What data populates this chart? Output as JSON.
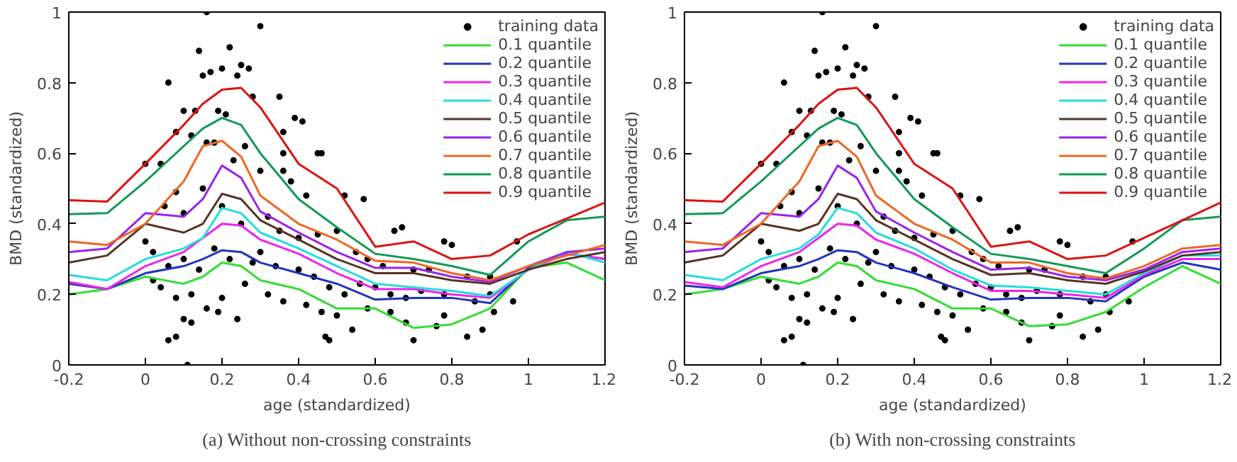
{
  "chart_data": [
    {
      "type": "line",
      "xlabel": "age (standardized)",
      "ylabel": "BMD (standardized)",
      "annotations": [
        "(a) Without non-crossing constraints"
      ],
      "xlim": [
        -0.2,
        1.2
      ],
      "ylim": [
        0,
        1
      ],
      "xticks": [
        -0.2,
        0,
        0.2,
        0.4,
        0.6,
        0.8,
        1,
        1.2
      ],
      "yticks": [
        0,
        0.2,
        0.4,
        0.6,
        0.8,
        1
      ],
      "grid": false,
      "legend": "top right",
      "line_style": "solid",
      "x": [
        -0.2,
        -0.1,
        0,
        0.1,
        0.15,
        0.2,
        0.25,
        0.3,
        0.4,
        0.5,
        0.6,
        0.7,
        0.8,
        0.9,
        1.0,
        1.1,
        1.2
      ],
      "series": [
        {
          "name": "training data",
          "type": "scatter",
          "marker": "circle",
          "color": "#000000",
          "x": [
            0.16,
            0.3,
            0.14,
            0.22,
            0.2,
            0.15,
            0.17,
            0.25,
            0.27,
            0.06,
            0.24,
            0.1,
            0.08,
            0.13,
            0.19,
            0.21,
            0.28,
            0.35,
            0.41,
            0.39,
            0.45,
            0.46,
            0.36,
            0.36,
            0.04,
            0.0,
            0.12,
            0.16,
            0.18,
            0.23,
            0.26,
            0.3,
            0.36,
            0.38,
            0.42,
            0.52,
            0.57,
            0.65,
            0.67,
            0.78,
            0.8,
            0.97,
            0.05,
            0.08,
            0.1,
            0.15,
            0.2,
            0.25,
            0.32,
            0.35,
            0.4,
            0.45,
            0.5,
            0.55,
            0.58,
            0.62,
            0.7,
            0.74,
            0.84,
            0.9,
            0.0,
            0.02,
            0.06,
            0.1,
            0.14,
            0.18,
            0.22,
            0.28,
            0.3,
            0.34,
            0.4,
            0.44,
            0.48,
            0.52,
            0.56,
            0.6,
            0.64,
            0.68,
            0.72,
            0.78,
            0.86,
            0.9,
            0.02,
            0.04,
            0.08,
            0.12,
            0.16,
            0.2,
            0.24,
            0.26,
            0.32,
            0.36,
            0.42,
            0.46,
            0.5,
            0.54,
            0.48,
            0.47,
            0.64,
            0.68,
            0.7,
            0.76,
            0.78,
            0.84,
            0.88,
            0.91,
            0.06,
            0.08,
            0.1,
            0.12,
            0.11,
            0.19,
            0.96,
            0.58
          ],
          "values": [
            1.0,
            0.96,
            0.89,
            0.9,
            0.84,
            0.82,
            0.83,
            0.85,
            0.84,
            0.8,
            0.82,
            0.72,
            0.66,
            0.72,
            0.72,
            0.71,
            0.76,
            0.76,
            0.69,
            0.7,
            0.6,
            0.6,
            0.66,
            0.6,
            0.57,
            0.57,
            0.65,
            0.63,
            0.63,
            0.58,
            0.62,
            0.55,
            0.55,
            0.52,
            0.48,
            0.48,
            0.47,
            0.38,
            0.39,
            0.35,
            0.34,
            0.35,
            0.45,
            0.49,
            0.43,
            0.5,
            0.45,
            0.4,
            0.42,
            0.38,
            0.36,
            0.37,
            0.38,
            0.32,
            0.3,
            0.28,
            0.27,
            0.27,
            0.25,
            0.25,
            0.35,
            0.32,
            0.28,
            0.3,
            0.27,
            0.33,
            0.3,
            0.29,
            0.32,
            0.28,
            0.27,
            0.25,
            0.22,
            0.2,
            0.23,
            0.22,
            0.2,
            0.19,
            0.21,
            0.2,
            0.18,
            0.2,
            0.24,
            0.22,
            0.19,
            0.2,
            0.16,
            0.19,
            0.13,
            0.23,
            0.2,
            0.18,
            0.17,
            0.15,
            0.14,
            0.1,
            0.07,
            0.08,
            0.15,
            0.12,
            0.07,
            0.11,
            0.14,
            0.08,
            0.1,
            0.15,
            0.07,
            0.08,
            0.13,
            0.12,
            0.0,
            0.15,
            0.18,
            0.16
          ]
        },
        {
          "name": "0.1 quantile",
          "color": "#33dd33",
          "values": [
            0.2,
            0.215,
            0.25,
            0.23,
            0.25,
            0.29,
            0.28,
            0.24,
            0.215,
            0.16,
            0.16,
            0.105,
            0.115,
            0.16,
            0.275,
            0.29,
            0.24
          ]
        },
        {
          "name": "0.2 quantile",
          "color": "#2233bb",
          "values": [
            0.23,
            0.215,
            0.26,
            0.28,
            0.3,
            0.325,
            0.32,
            0.29,
            0.26,
            0.23,
            0.185,
            0.19,
            0.19,
            0.175,
            0.275,
            0.315,
            0.3
          ]
        },
        {
          "name": "0.3 quantile",
          "color": "#ee22ee",
          "values": [
            0.235,
            0.215,
            0.28,
            0.32,
            0.36,
            0.4,
            0.395,
            0.355,
            0.315,
            0.26,
            0.215,
            0.215,
            0.2,
            0.19,
            0.27,
            0.315,
            0.3
          ]
        },
        {
          "name": "0.4 quantile",
          "color": "#22dddd",
          "values": [
            0.255,
            0.24,
            0.3,
            0.33,
            0.36,
            0.445,
            0.43,
            0.375,
            0.33,
            0.28,
            0.23,
            0.22,
            0.21,
            0.195,
            0.27,
            0.32,
            0.29
          ]
        },
        {
          "name": "0.5 quantile",
          "color": "#553322",
          "values": [
            0.29,
            0.31,
            0.4,
            0.375,
            0.4,
            0.485,
            0.47,
            0.41,
            0.355,
            0.3,
            0.26,
            0.26,
            0.24,
            0.23,
            0.27,
            0.3,
            0.32
          ]
        },
        {
          "name": "0.6 quantile",
          "color": "#9922ee",
          "values": [
            0.32,
            0.33,
            0.43,
            0.42,
            0.47,
            0.565,
            0.53,
            0.435,
            0.375,
            0.32,
            0.275,
            0.275,
            0.25,
            0.235,
            0.28,
            0.32,
            0.33
          ]
        },
        {
          "name": "0.7 quantile",
          "color": "#ee6622",
          "values": [
            0.35,
            0.34,
            0.4,
            0.52,
            0.62,
            0.635,
            0.59,
            0.48,
            0.4,
            0.355,
            0.295,
            0.29,
            0.26,
            0.24,
            0.28,
            0.31,
            0.34
          ]
        },
        {
          "name": "0.8 quantile",
          "color": "#119955",
          "values": [
            0.427,
            0.43,
            0.52,
            0.62,
            0.67,
            0.7,
            0.68,
            0.6,
            0.47,
            0.39,
            0.315,
            0.3,
            0.28,
            0.255,
            0.35,
            0.41,
            0.42
          ]
        },
        {
          "name": "0.9 quantile",
          "color": "#dd1111",
          "values": [
            0.467,
            0.463,
            0.57,
            0.68,
            0.74,
            0.78,
            0.785,
            0.73,
            0.57,
            0.5,
            0.335,
            0.35,
            0.3,
            0.31,
            0.37,
            0.415,
            0.46
          ]
        }
      ]
    },
    {
      "type": "line",
      "xlabel": "age (standardized)",
      "ylabel": "BMD (standardized)",
      "annotations": [
        "(b) With non-crossing constraints"
      ],
      "xlim": [
        -0.2,
        1.2
      ],
      "ylim": [
        0,
        1
      ],
      "xticks": [
        -0.2,
        0,
        0.2,
        0.4,
        0.6,
        0.8,
        1,
        1.2
      ],
      "yticks": [
        0,
        0.2,
        0.4,
        0.6,
        0.8,
        1
      ],
      "grid": false,
      "legend": "top right",
      "line_style": "solid",
      "x": [
        -0.2,
        -0.1,
        0,
        0.1,
        0.15,
        0.2,
        0.25,
        0.3,
        0.4,
        0.5,
        0.6,
        0.7,
        0.8,
        0.9,
        1.0,
        1.1,
        1.2
      ],
      "series": [
        {
          "name": "training data",
          "type": "scatter",
          "marker": "circle",
          "color": "#000000",
          "x": [
            0.16,
            0.3,
            0.14,
            0.22,
            0.2,
            0.15,
            0.17,
            0.25,
            0.27,
            0.06,
            0.24,
            0.1,
            0.08,
            0.13,
            0.19,
            0.21,
            0.28,
            0.35,
            0.41,
            0.39,
            0.45,
            0.46,
            0.36,
            0.36,
            0.04,
            0.0,
            0.12,
            0.16,
            0.18,
            0.23,
            0.26,
            0.3,
            0.36,
            0.38,
            0.42,
            0.52,
            0.57,
            0.65,
            0.67,
            0.78,
            0.8,
            0.97,
            0.05,
            0.08,
            0.1,
            0.15,
            0.2,
            0.25,
            0.32,
            0.35,
            0.4,
            0.45,
            0.5,
            0.55,
            0.58,
            0.62,
            0.7,
            0.74,
            0.84,
            0.9,
            0.0,
            0.02,
            0.06,
            0.1,
            0.14,
            0.18,
            0.22,
            0.28,
            0.3,
            0.34,
            0.4,
            0.44,
            0.48,
            0.52,
            0.56,
            0.6,
            0.64,
            0.68,
            0.72,
            0.78,
            0.86,
            0.9,
            0.02,
            0.04,
            0.08,
            0.12,
            0.16,
            0.2,
            0.24,
            0.26,
            0.32,
            0.36,
            0.42,
            0.46,
            0.5,
            0.54,
            0.48,
            0.47,
            0.64,
            0.68,
            0.7,
            0.76,
            0.78,
            0.84,
            0.88,
            0.91,
            0.06,
            0.08,
            0.1,
            0.12,
            0.11,
            0.19,
            0.96,
            0.58
          ],
          "values": [
            1.0,
            0.96,
            0.89,
            0.9,
            0.84,
            0.82,
            0.83,
            0.85,
            0.84,
            0.8,
            0.82,
            0.72,
            0.66,
            0.72,
            0.72,
            0.71,
            0.76,
            0.76,
            0.69,
            0.7,
            0.6,
            0.6,
            0.66,
            0.6,
            0.57,
            0.57,
            0.65,
            0.63,
            0.63,
            0.58,
            0.62,
            0.55,
            0.55,
            0.52,
            0.48,
            0.48,
            0.47,
            0.38,
            0.39,
            0.35,
            0.34,
            0.35,
            0.45,
            0.49,
            0.43,
            0.5,
            0.45,
            0.4,
            0.42,
            0.38,
            0.36,
            0.37,
            0.38,
            0.32,
            0.3,
            0.28,
            0.27,
            0.27,
            0.25,
            0.25,
            0.35,
            0.32,
            0.28,
            0.3,
            0.27,
            0.33,
            0.3,
            0.29,
            0.32,
            0.28,
            0.27,
            0.25,
            0.22,
            0.2,
            0.23,
            0.22,
            0.2,
            0.19,
            0.21,
            0.2,
            0.18,
            0.2,
            0.24,
            0.22,
            0.19,
            0.2,
            0.16,
            0.19,
            0.13,
            0.23,
            0.2,
            0.18,
            0.17,
            0.15,
            0.14,
            0.1,
            0.07,
            0.08,
            0.15,
            0.12,
            0.07,
            0.11,
            0.14,
            0.08,
            0.1,
            0.15,
            0.07,
            0.08,
            0.13,
            0.12,
            0.0,
            0.15,
            0.18,
            0.16
          ]
        },
        {
          "name": "0.1 quantile",
          "color": "#33dd33",
          "values": [
            0.2,
            0.215,
            0.25,
            0.23,
            0.25,
            0.29,
            0.28,
            0.24,
            0.215,
            0.16,
            0.16,
            0.11,
            0.115,
            0.15,
            0.22,
            0.28,
            0.23
          ]
        },
        {
          "name": "0.2 quantile",
          "color": "#2233bb",
          "values": [
            0.225,
            0.215,
            0.26,
            0.28,
            0.3,
            0.325,
            0.32,
            0.29,
            0.26,
            0.22,
            0.185,
            0.19,
            0.19,
            0.18,
            0.25,
            0.29,
            0.27
          ]
        },
        {
          "name": "0.3 quantile",
          "color": "#ee22ee",
          "values": [
            0.235,
            0.22,
            0.28,
            0.32,
            0.36,
            0.4,
            0.395,
            0.355,
            0.315,
            0.26,
            0.21,
            0.21,
            0.2,
            0.19,
            0.255,
            0.3,
            0.3
          ]
        },
        {
          "name": "0.4 quantile",
          "color": "#22dddd",
          "values": [
            0.255,
            0.24,
            0.3,
            0.33,
            0.37,
            0.445,
            0.43,
            0.375,
            0.33,
            0.27,
            0.225,
            0.22,
            0.21,
            0.2,
            0.26,
            0.31,
            0.31
          ]
        },
        {
          "name": "0.5 quantile",
          "color": "#553322",
          "values": [
            0.29,
            0.31,
            0.4,
            0.38,
            0.4,
            0.485,
            0.47,
            0.41,
            0.355,
            0.3,
            0.255,
            0.26,
            0.24,
            0.23,
            0.265,
            0.31,
            0.32
          ]
        },
        {
          "name": "0.6 quantile",
          "color": "#9922ee",
          "values": [
            0.32,
            0.33,
            0.43,
            0.42,
            0.47,
            0.565,
            0.53,
            0.435,
            0.375,
            0.32,
            0.27,
            0.275,
            0.25,
            0.24,
            0.27,
            0.32,
            0.33
          ]
        },
        {
          "name": "0.7 quantile",
          "color": "#ee6622",
          "values": [
            0.35,
            0.34,
            0.4,
            0.52,
            0.62,
            0.635,
            0.59,
            0.48,
            0.4,
            0.355,
            0.29,
            0.29,
            0.26,
            0.245,
            0.28,
            0.33,
            0.34
          ]
        },
        {
          "name": "0.8 quantile",
          "color": "#119955",
          "values": [
            0.427,
            0.43,
            0.52,
            0.62,
            0.67,
            0.7,
            0.68,
            0.6,
            0.47,
            0.39,
            0.315,
            0.3,
            0.28,
            0.26,
            0.33,
            0.41,
            0.42
          ]
        },
        {
          "name": "0.9 quantile",
          "color": "#dd1111",
          "values": [
            0.467,
            0.463,
            0.57,
            0.68,
            0.74,
            0.78,
            0.785,
            0.73,
            0.57,
            0.5,
            0.335,
            0.35,
            0.3,
            0.31,
            0.36,
            0.41,
            0.46
          ]
        }
      ]
    }
  ]
}
